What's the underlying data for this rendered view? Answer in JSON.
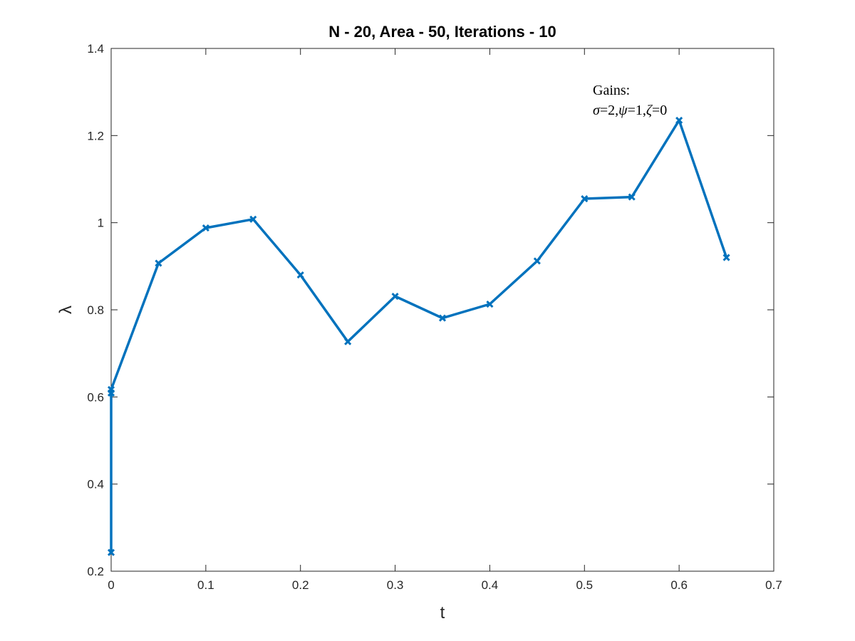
{
  "chart_data": {
    "type": "line",
    "title": "N - 20, Area - 50, Iterations - 10",
    "xlabel": "t",
    "ylabel": "λ",
    "xlim": [
      0,
      0.7
    ],
    "ylim": [
      0.2,
      1.4
    ],
    "xticks": [
      0,
      0.1,
      0.2,
      0.3,
      0.4,
      0.5,
      0.6,
      0.7
    ],
    "xtick_labels": [
      "0",
      "0.1",
      "0.2",
      "0.3",
      "0.4",
      "0.5",
      "0.6",
      "0.7"
    ],
    "yticks": [
      0.2,
      0.4,
      0.6,
      0.8,
      1.0,
      1.2,
      1.4
    ],
    "ytick_labels": [
      "0.2",
      "0.4",
      "0.6",
      "0.8",
      "1",
      "1.2",
      "1.4"
    ],
    "grid": false,
    "series": [
      {
        "name": "lambda",
        "color": "#0072BD",
        "marker": "x",
        "x": [
          0,
          0,
          0,
          0.05,
          0.1,
          0.15,
          0.2,
          0.25,
          0.3,
          0.35,
          0.4,
          0.45,
          0.5,
          0.55,
          0.6,
          0.65
        ],
        "y": [
          0.243,
          0.609,
          0.617,
          0.907,
          0.988,
          1.008,
          0.88,
          0.727,
          0.831,
          0.781,
          0.813,
          0.912,
          1.055,
          1.059,
          1.235,
          0.92
        ]
      }
    ],
    "annotation": {
      "line1": "Gains:",
      "sigma_symbol": "σ",
      "sigma_value": "=2,",
      "psi_symbol": "ψ",
      "psi_value": "=1,",
      "zeta_symbol": "ζ",
      "zeta_value": "=0"
    }
  }
}
